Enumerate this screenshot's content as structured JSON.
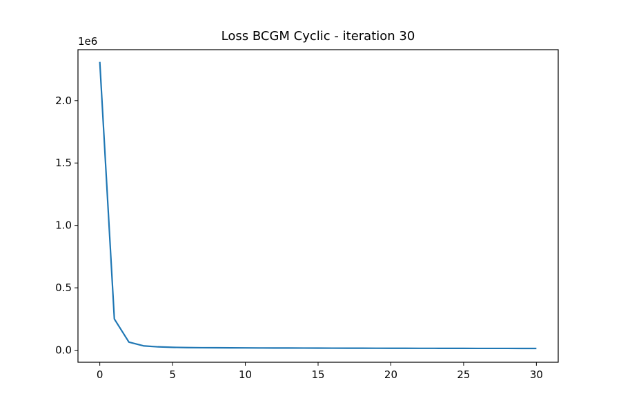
{
  "chart_data": {
    "type": "line",
    "title": "Loss BCGM Cyclic - iteration 30",
    "xlabel": "",
    "ylabel": "",
    "y_offset_label": "1e6",
    "xlim": [
      -1.5,
      31.5
    ],
    "ylim": [
      -0.0965,
      2.408
    ],
    "x_ticks": [
      0,
      5,
      10,
      15,
      20,
      25,
      30
    ],
    "x_tick_labels": [
      "0",
      "5",
      "10",
      "15",
      "20",
      "25",
      "30"
    ],
    "y_ticks": [
      0.0,
      0.5,
      1.0,
      1.5,
      2.0
    ],
    "y_tick_labels": [
      "0.0",
      "0.5",
      "1.0",
      "1.5",
      "2.0"
    ],
    "grid": false,
    "legend": "none",
    "color": "#1f77b4",
    "series": [
      {
        "x": [
          0,
          1,
          2,
          3,
          4,
          5,
          6,
          7,
          8,
          9,
          10,
          11,
          12,
          13,
          14,
          15,
          16,
          17,
          18,
          19,
          20,
          21,
          22,
          23,
          24,
          25,
          26,
          27,
          28,
          29,
          30
        ],
        "values": [
          2.31,
          0.25,
          0.065,
          0.035,
          0.027,
          0.023,
          0.021,
          0.02,
          0.0195,
          0.019,
          0.0185,
          0.018,
          0.0177,
          0.0174,
          0.0171,
          0.0168,
          0.0165,
          0.0162,
          0.016,
          0.0158,
          0.0156,
          0.0154,
          0.0152,
          0.015,
          0.0148,
          0.0146,
          0.0145,
          0.0144,
          0.0143,
          0.0142,
          0.0141
        ]
      }
    ]
  }
}
